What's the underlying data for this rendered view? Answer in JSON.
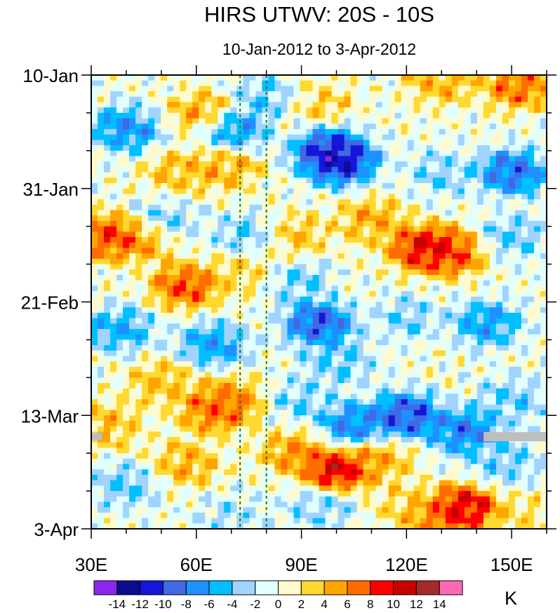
{
  "chart_data": {
    "type": "heatmap",
    "title": "HIRS UTWV: 20S - 10S",
    "subtitle": "10-Jan-2012 to 3-Apr-2012",
    "xlabel": "",
    "ylabel": "",
    "x_range": [
      30,
      160
    ],
    "x_ticks": [
      {
        "value": 30,
        "label": "30E"
      },
      {
        "value": 60,
        "label": "60E"
      },
      {
        "value": 90,
        "label": "90E"
      },
      {
        "value": 120,
        "label": "120E"
      },
      {
        "value": 150,
        "label": "150E"
      }
    ],
    "y_range_days": [
      0,
      84
    ],
    "y_ticks": [
      {
        "day": 0,
        "label": "10-Jan"
      },
      {
        "day": 21,
        "label": "31-Jan"
      },
      {
        "day": 42,
        "label": "21-Feb"
      },
      {
        "day": 63,
        "label": "13-Mar"
      },
      {
        "day": 84,
        "label": "3-Apr"
      }
    ],
    "reference_lines_lon": [
      72.5,
      80
    ],
    "colorbar": {
      "unit": "K",
      "labels": [
        "-14",
        "-12",
        "-10",
        "-8",
        "-6",
        "-4",
        "-2",
        "0",
        "2",
        "4",
        "6",
        "8",
        "10",
        "12",
        "14"
      ],
      "levels": [
        -14,
        -12,
        -10,
        -8,
        -6,
        -4,
        -2,
        0,
        2,
        4,
        6,
        8,
        10,
        12,
        14
      ],
      "colors": [
        "#8b26ec",
        "#0c0c8f",
        "#1616d8",
        "#4169e1",
        "#1e90ff",
        "#00bfff",
        "#a0d4ff",
        "#e0ffff",
        "#fffacd",
        "#ffd830",
        "#ffa500",
        "#ff6c00",
        "#ff0000",
        "#c80000",
        "#a52a2a",
        "#ff69b4"
      ]
    },
    "features": [
      {
        "lon": 80,
        "day": 4,
        "value": -5
      },
      {
        "lon": 62,
        "day": 7,
        "value": 7
      },
      {
        "lon": 95,
        "day": 5,
        "value": 4
      },
      {
        "lon": 152,
        "day": 2,
        "value": 9
      },
      {
        "lon": 130,
        "day": 1,
        "value": 6
      },
      {
        "lon": 40,
        "day": 10,
        "value": -9
      },
      {
        "lon": 70,
        "day": 10,
        "value": -9
      },
      {
        "lon": 98,
        "day": 14,
        "value": -13
      },
      {
        "lon": 101,
        "day": 16,
        "value": -15
      },
      {
        "lon": 150,
        "day": 18,
        "value": -11
      },
      {
        "lon": 130,
        "day": 18,
        "value": -4
      },
      {
        "lon": 55,
        "day": 18,
        "value": 5
      },
      {
        "lon": 68,
        "day": 17,
        "value": 6
      },
      {
        "lon": 35,
        "day": 30,
        "value": 10
      },
      {
        "lon": 44,
        "day": 30,
        "value": 8
      },
      {
        "lon": 50,
        "day": 27,
        "value": -5
      },
      {
        "lon": 75,
        "day": 30,
        "value": -5
      },
      {
        "lon": 110,
        "day": 27,
        "value": 6
      },
      {
        "lon": 125,
        "day": 32,
        "value": 13
      },
      {
        "lon": 133,
        "day": 33,
        "value": 10
      },
      {
        "lon": 88,
        "day": 30,
        "value": 5
      },
      {
        "lon": 150,
        "day": 30,
        "value": -5
      },
      {
        "lon": 57,
        "day": 39,
        "value": 10
      },
      {
        "lon": 75,
        "day": 36,
        "value": 4
      },
      {
        "lon": 88,
        "day": 38,
        "value": -5
      },
      {
        "lon": 38,
        "day": 47,
        "value": -7
      },
      {
        "lon": 95,
        "day": 46,
        "value": -12
      },
      {
        "lon": 120,
        "day": 45,
        "value": -4
      },
      {
        "lon": 143,
        "day": 46,
        "value": -8
      },
      {
        "lon": 65,
        "day": 50,
        "value": -8
      },
      {
        "lon": 100,
        "day": 53,
        "value": -5
      },
      {
        "lon": 50,
        "day": 57,
        "value": 5
      },
      {
        "lon": 65,
        "day": 62,
        "value": 9
      },
      {
        "lon": 70,
        "day": 60,
        "value": 7
      },
      {
        "lon": 120,
        "day": 63,
        "value": -13
      },
      {
        "lon": 105,
        "day": 65,
        "value": -10
      },
      {
        "lon": 137,
        "day": 66,
        "value": -10
      },
      {
        "lon": 150,
        "day": 60,
        "value": -5
      },
      {
        "lon": 35,
        "day": 65,
        "value": 5
      },
      {
        "lon": 90,
        "day": 60,
        "value": -4
      },
      {
        "lon": 100,
        "day": 73,
        "value": 14
      },
      {
        "lon": 88,
        "day": 70,
        "value": 7
      },
      {
        "lon": 112,
        "day": 71,
        "value": 6
      },
      {
        "lon": 57,
        "day": 72,
        "value": 6
      },
      {
        "lon": 148,
        "day": 72,
        "value": -5
      },
      {
        "lon": 40,
        "day": 76,
        "value": -5
      },
      {
        "lon": 137,
        "day": 80,
        "value": 13
      },
      {
        "lon": 130,
        "day": 82,
        "value": 9
      },
      {
        "lon": 120,
        "day": 80,
        "value": 4
      },
      {
        "lon": 155,
        "day": 82,
        "value": 3
      },
      {
        "lon": 95,
        "day": 80,
        "value": -4
      },
      {
        "lon": 70,
        "day": 82,
        "value": -3
      }
    ],
    "missing_regions": [
      {
        "lon_start": 142,
        "lon_end": 160,
        "day_start": 66.1,
        "day_end": 67.8
      },
      {
        "lon_start": 30,
        "lon_end": 33,
        "day_start": 66.2,
        "day_end": 67.6
      }
    ]
  }
}
